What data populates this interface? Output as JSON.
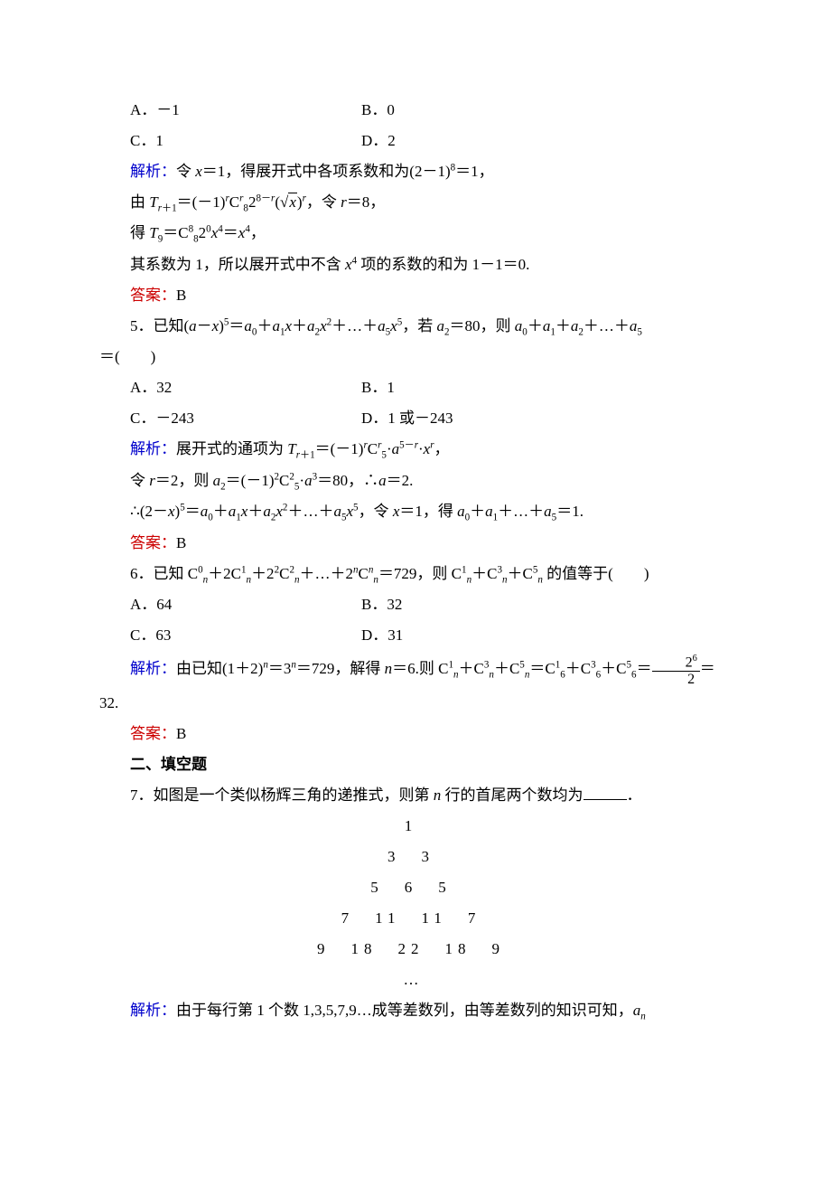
{
  "colors": {
    "text": "#000000",
    "blue_label": "#0000cc",
    "red_label": "#cc0000",
    "background": "#ffffff"
  },
  "typography": {
    "body_fontsize_pt": 13,
    "line_height": 2.0,
    "font_family": "SimSun"
  },
  "q4": {
    "options": {
      "A": "A．－1",
      "B": "B．0",
      "C": "C．1",
      "D": "D．2"
    },
    "sol_label": "解析：",
    "sol_1_a": "令 ",
    "sol_1_b": "＝1，得展开式中各项系数和为(2－1)",
    "sol_1_c": "＝1，",
    "sol_2_a": "由 ",
    "sol_2_b": "＝(－1)",
    "sol_2_c": "2",
    "sol_2_d": "(",
    "sol_2_e": ")",
    "sol_2_f": "，令 ",
    "sol_2_g": "＝8，",
    "sol_3_a": "得 ",
    "sol_3_b": "＝C",
    "sol_3_c": "2",
    "sol_3_d": "＝",
    "sol_3_e": "，",
    "sol_4_a": "其系数为 1，所以展开式中不含 ",
    "sol_4_b": " 项的系数的和为 1－1＝0.",
    "ans_label": "答案：",
    "ans": "B"
  },
  "q5": {
    "stem_a": "5．已知(",
    "stem_b": "－",
    "stem_c": ")",
    "stem_d": "＝",
    "stem_e": "＋",
    "stem_f": "＋",
    "stem_g": "＋…＋",
    "stem_h": "，若 ",
    "stem_i": "＝80，则 ",
    "stem_j": "＋",
    "stem_k": "＋",
    "stem_l": "＋…＋",
    "line2": "＝(　　)",
    "options": {
      "A": "A．32",
      "B": "B．1",
      "C": "C．－243",
      "D": "D．1 或－243"
    },
    "sol_label": "解析：",
    "sol_1_a": "展开式的通项为 ",
    "sol_1_b": "＝(－1)",
    "sol_1_c": "·",
    "sol_1_d": "·",
    "sol_1_e": "，",
    "sol_2_a": "令 ",
    "sol_2_b": "＝2，则 ",
    "sol_2_c": "＝(－1)",
    "sol_2_d": "·",
    "sol_2_e": "＝80，∴",
    "sol_2_f": "＝2.",
    "sol_3_a": "∴(2－",
    "sol_3_b": ")",
    "sol_3_c": "＝",
    "sol_3_d": "＋",
    "sol_3_e": "＋",
    "sol_3_f": "＋…＋",
    "sol_3_g": "，令 ",
    "sol_3_h": "＝1，得 ",
    "sol_3_i": "＋",
    "sol_3_j": "＋…＋",
    "sol_3_k": "＝1.",
    "ans_label": "答案：",
    "ans": "B"
  },
  "q6": {
    "stem_a": "6．已知 C",
    "stem_b": "＋2C",
    "stem_c": "＋2",
    "stem_d": "C",
    "stem_e": "＋…＋2",
    "stem_f": "C",
    "stem_g": "＝729，则 C",
    "stem_h": "＋C",
    "stem_i": "＋C",
    "stem_j": " 的值等于(　　)",
    "options": {
      "A": "A．64",
      "B": "B．32",
      "C": "C．63",
      "D": "D．31"
    },
    "sol_label": "解析：",
    "sol_a": "由已知(1＋2)",
    "sol_b": "＝3",
    "sol_c": "＝729，解得 ",
    "sol_d": "＝6.则 C",
    "sol_e": "＋C",
    "sol_f": "＋C",
    "sol_g": "＝C",
    "sol_h": "＋C",
    "sol_i": "＋C",
    "sol_j": "＝",
    "sol_k": "＝",
    "sol_tail": "32.",
    "frac_num": "2⁶",
    "frac_den": "2",
    "ans_label": "答案：",
    "ans": "B"
  },
  "section2": "二、填空题",
  "q7": {
    "stem_a": "7．如图是一个类似杨辉三角的递推式，则第 ",
    "stem_b": " 行的首尾两个数均为",
    "stem_c": "．",
    "triangle": {
      "rows": [
        "1",
        "3　3",
        "5　6　5",
        "7　11　11　7",
        "9　18　22　18　9",
        "…"
      ]
    },
    "sol_label": "解析：",
    "sol_a": "由于每行第 1 个数 1,3,5,7,9…成等差数列，由等差数列的知识可知，"
  },
  "italic": {
    "x": "x",
    "r": "r",
    "a": "a",
    "n": "n",
    "T": "T",
    "C": "C",
    "a_n": "aₙ"
  }
}
